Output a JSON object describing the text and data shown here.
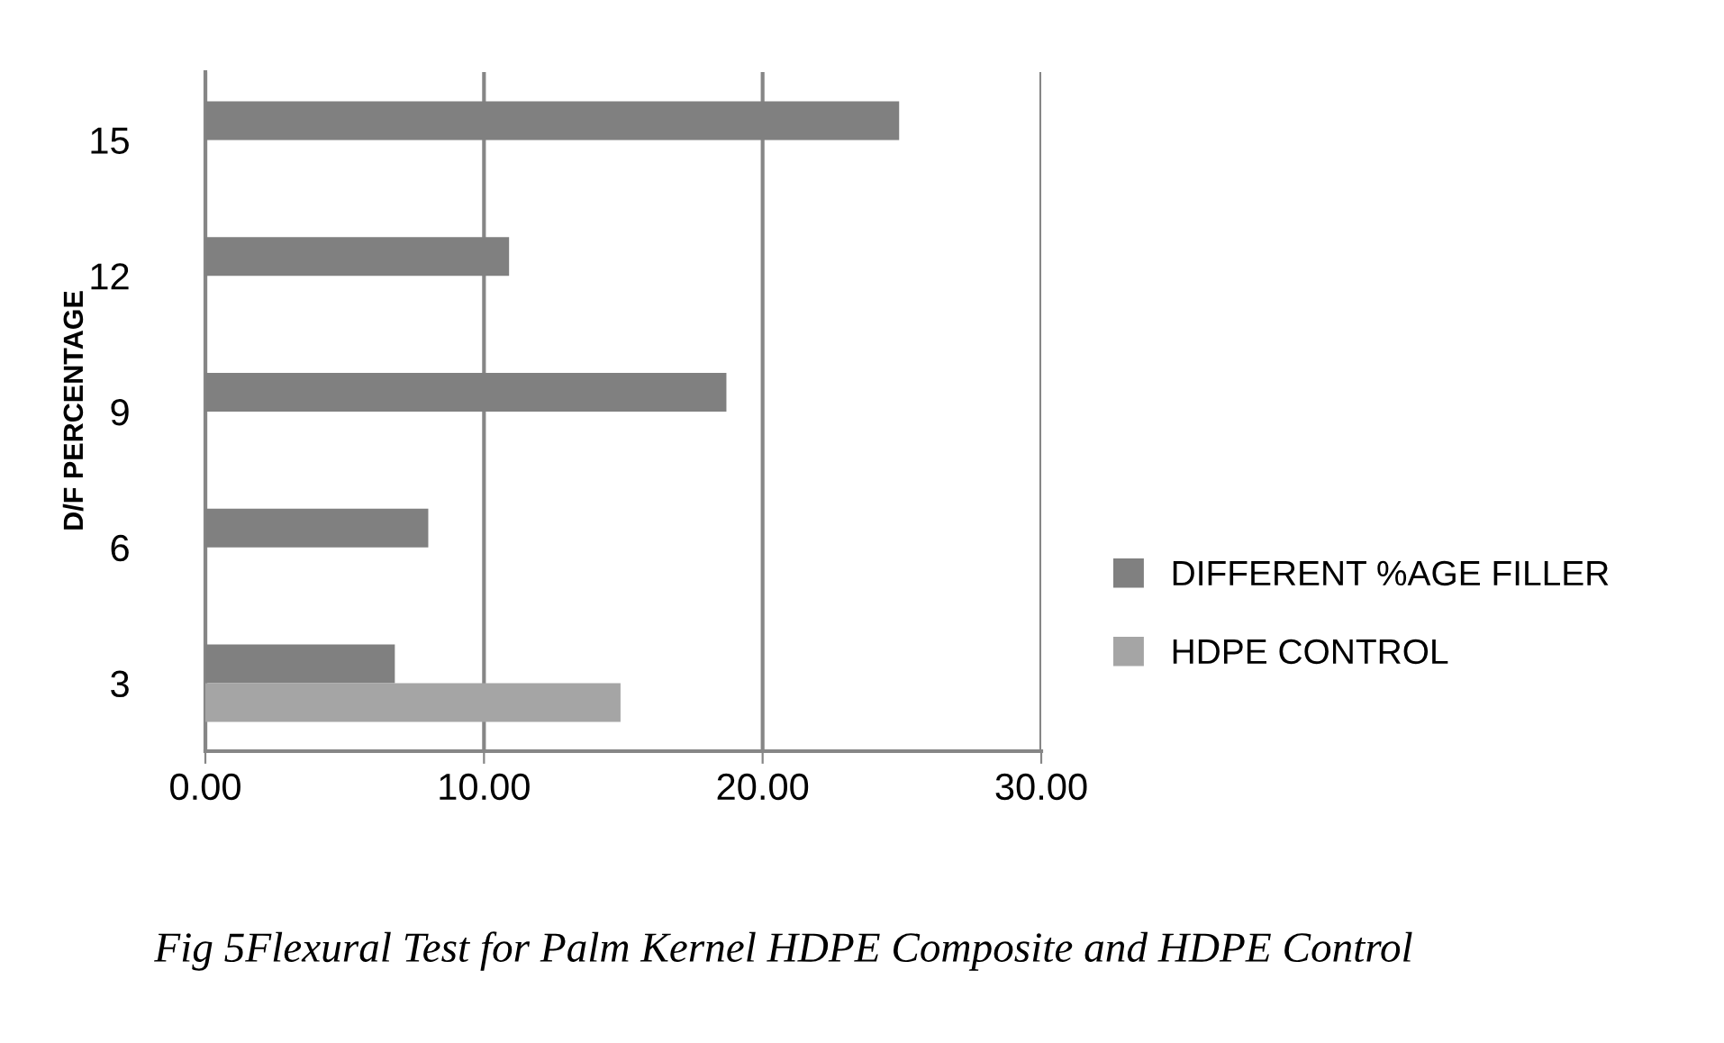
{
  "chart_data": {
    "type": "bar",
    "orientation": "horizontal",
    "ylabel": "D/F PERCENTAGE",
    "categories": [
      "15",
      "12",
      "9",
      "6",
      "3"
    ],
    "series": [
      {
        "name": "DIFFERENT %AGE FILLER",
        "color": "#808080",
        "values": [
          24.9,
          10.9,
          18.7,
          8.0,
          6.8
        ]
      },
      {
        "name": "HDPE CONTROL",
        "color": "#a5a5a5",
        "values": [
          null,
          null,
          null,
          null,
          14.9
        ]
      }
    ],
    "xlim": [
      0,
      30
    ],
    "xticks": [
      {
        "value": 0,
        "label": "0.00"
      },
      {
        "value": 10,
        "label": "10.00"
      },
      {
        "value": 20,
        "label": "20.00"
      },
      {
        "value": 30,
        "label": "30.00"
      }
    ],
    "grid": "x",
    "legend": "right",
    "annotations": [
      "Fig 5Flexural Test for Palm Kernel HDPE Composite and HDPE Control"
    ]
  }
}
